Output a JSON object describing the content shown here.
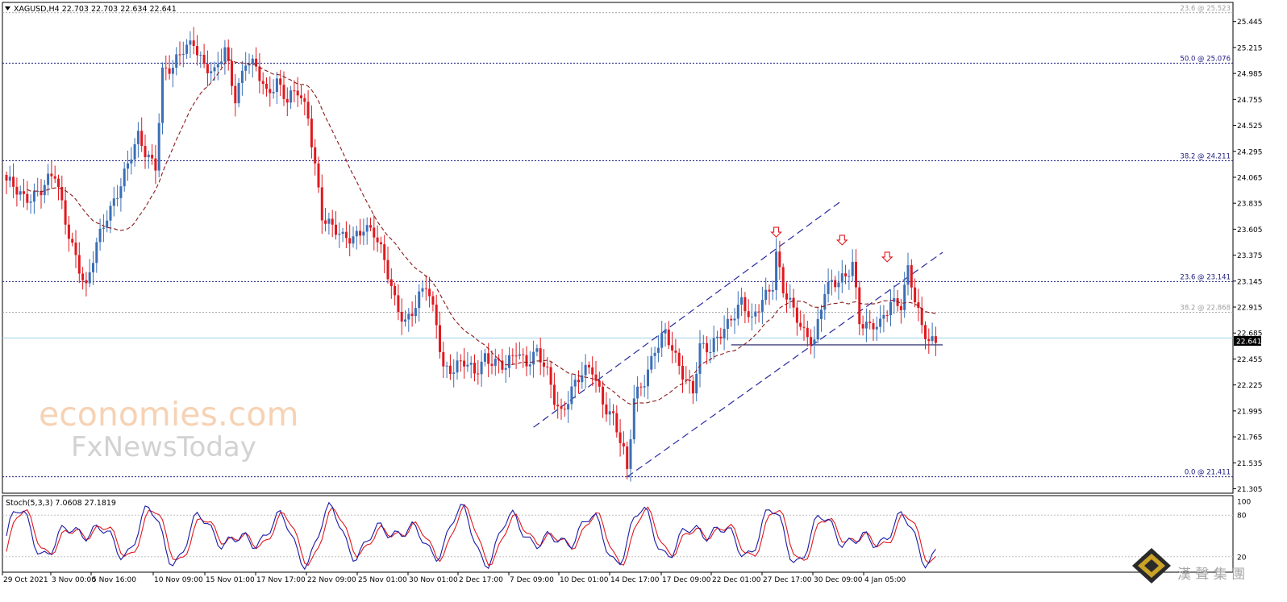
{
  "chart_data": {
    "type": "candlestick",
    "symbol_header": "XAGUSD,H4  22.703 22.703 22.634 22.641",
    "current_price": "22.641",
    "x_labels": [
      "29 Oct 2021",
      "3 Nov 00:00",
      "5 Nov 16:00",
      "10 Nov 09:00",
      "15 Nov 01:00",
      "17 Nov 17:00",
      "22 Nov 09:00",
      "25 Nov 01:00",
      "30 Nov 01:00",
      "2 Dec 17:00",
      "7 Dec 09:00",
      "10 Dec 01:00",
      "14 Dec 17:00",
      "17 Dec 09:00",
      "22 Dec 01:00",
      "27 Dec 17:00",
      "30 Dec 09:00",
      "4 Jan 05:00"
    ],
    "y_ticks": [
      "25.445",
      "25.215",
      "24.985",
      "24.755",
      "24.525",
      "24.295",
      "24.065",
      "23.835",
      "23.605",
      "23.375",
      "23.145",
      "22.915",
      "22.685",
      "22.455",
      "22.225",
      "21.995",
      "21.765",
      "21.535",
      "21.305"
    ],
    "y_range": [
      21.28,
      25.6
    ],
    "fib_levels": [
      {
        "label": "23.6 @ 25.523",
        "price": 25.523,
        "style": "grey"
      },
      {
        "label": "50.0 @ 25.076",
        "price": 25.076,
        "style": "navy"
      },
      {
        "label": "38.2 @ 24.211",
        "price": 24.211,
        "style": "navy"
      },
      {
        "label": "23.6 @ 23.141",
        "price": 23.141,
        "style": "navy"
      },
      {
        "label": "38.2 @ 22.868",
        "price": 22.868,
        "style": "grey"
      },
      {
        "label": "0.0 @ 21.411",
        "price": 21.411,
        "style": "navy"
      }
    ],
    "moving_average_color": "#8b1a1a",
    "up_color": "#3b6fb6",
    "down_color": "#e0191f",
    "support_level": 22.58,
    "resistance_arrows": 3,
    "price_path": [
      [
        0,
        24.0
      ],
      [
        5,
        23.9
      ],
      [
        10,
        23.95
      ],
      [
        14,
        24.07
      ],
      [
        17,
        23.7
      ],
      [
        20,
        23.38
      ],
      [
        23,
        23.05
      ],
      [
        26,
        23.45
      ],
      [
        29,
        23.75
      ],
      [
        32,
        23.95
      ],
      [
        35,
        24.15
      ],
      [
        38,
        24.4
      ],
      [
        40,
        24.3
      ],
      [
        43,
        24.2
      ],
      [
        45,
        25.0
      ],
      [
        48,
        25.0
      ],
      [
        51,
        25.2
      ],
      [
        54,
        25.3
      ],
      [
        57,
        25.05
      ],
      [
        60,
        24.95
      ],
      [
        63,
        25.2
      ],
      [
        66,
        24.8
      ],
      [
        69,
        25.1
      ],
      [
        72,
        25.0
      ],
      [
        75,
        24.8
      ],
      [
        78,
        24.95
      ],
      [
        81,
        24.75
      ],
      [
        84,
        24.8
      ],
      [
        87,
        24.6
      ],
      [
        89,
        24.2
      ],
      [
        91,
        23.75
      ],
      [
        94,
        23.6
      ],
      [
        97,
        23.5
      ],
      [
        100,
        23.55
      ],
      [
        103,
        23.65
      ],
      [
        106,
        23.55
      ],
      [
        109,
        23.3
      ],
      [
        112,
        23.0
      ],
      [
        115,
        22.8
      ],
      [
        118,
        22.9
      ],
      [
        121,
        23.1
      ],
      [
        124,
        22.8
      ],
      [
        126,
        22.4
      ],
      [
        129,
        22.35
      ],
      [
        132,
        22.4
      ],
      [
        135,
        22.35
      ],
      [
        138,
        22.5
      ],
      [
        141,
        22.4
      ],
      [
        144,
        22.35
      ],
      [
        147,
        22.55
      ],
      [
        150,
        22.45
      ],
      [
        153,
        22.5
      ],
      [
        156,
        22.3
      ],
      [
        158,
        22.1
      ],
      [
        160,
        22.0
      ],
      [
        163,
        22.2
      ],
      [
        166,
        22.3
      ],
      [
        169,
        22.35
      ],
      [
        172,
        22.1
      ],
      [
        175,
        21.95
      ],
      [
        178,
        21.6
      ],
      [
        179,
        21.42
      ],
      [
        181,
        22.1
      ],
      [
        184,
        22.3
      ],
      [
        187,
        22.55
      ],
      [
        190,
        22.65
      ],
      [
        193,
        22.45
      ],
      [
        196,
        22.3
      ],
      [
        198,
        22.2
      ],
      [
        200,
        22.55
      ],
      [
        203,
        22.5
      ],
      [
        206,
        22.7
      ],
      [
        209,
        22.85
      ],
      [
        212,
        22.95
      ],
      [
        215,
        22.75
      ],
      [
        218,
        23.0
      ],
      [
        221,
        23.15
      ],
      [
        222,
        23.41
      ],
      [
        224,
        23.05
      ],
      [
        227,
        22.85
      ],
      [
        230,
        22.7
      ],
      [
        233,
        22.65
      ],
      [
        236,
        23.05
      ],
      [
        239,
        23.1
      ],
      [
        242,
        23.2
      ],
      [
        244,
        23.35
      ],
      [
        246,
        22.8
      ],
      [
        249,
        22.7
      ],
      [
        252,
        22.75
      ],
      [
        255,
        23.0
      ],
      [
        258,
        22.95
      ],
      [
        260,
        23.22
      ],
      [
        262,
        22.95
      ],
      [
        264,
        22.72
      ],
      [
        266,
        22.65
      ],
      [
        268,
        22.64
      ]
    ],
    "stochastic": {
      "label": "Stoch(5,3,3) 7.0608 27.1819",
      "levels": [
        "100",
        "80",
        "20"
      ],
      "k_color": "#1a1aa6",
      "d_color": "#e0191f"
    }
  },
  "watermark": {
    "brand_main": "economies.com",
    "brand_sub": "FxNewsToday",
    "corner_text": "漢 聲 集 團"
  }
}
